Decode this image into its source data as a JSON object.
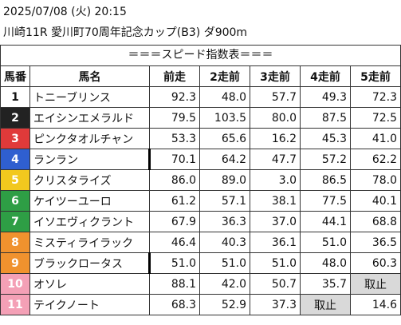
{
  "header": {
    "date": "2025/07/08 (火) 20:15",
    "race": "川崎11R 愛川町70周年記念カップ(B3) ダ900m"
  },
  "table": {
    "caption": "＝＝＝スピード指数表＝＝＝",
    "columns": [
      "馬番",
      "馬名",
      "前走",
      "2走前",
      "3走前",
      "4走前",
      "5走前"
    ],
    "rows": [
      [
        "1",
        "トニーブリンス",
        "92.3",
        "48.0",
        "57.7",
        "49.3",
        "72.3"
      ],
      [
        "2",
        "エイシンエメラルド",
        "79.5",
        "103.5",
        "80.0",
        "87.5",
        "72.5"
      ],
      [
        "3",
        "ピンクタオルチャン",
        "53.3",
        "65.6",
        "16.2",
        "45.3",
        "41.0"
      ],
      [
        "4",
        "ランラン",
        "70.1",
        "64.2",
        "47.7",
        "57.2",
        "62.2"
      ],
      [
        "5",
        "クリスタライズ",
        "86.0",
        "89.0",
        "3.0",
        "86.5",
        "78.0"
      ],
      [
        "6",
        "ケイツーユーロ",
        "61.2",
        "57.1",
        "38.1",
        "77.5",
        "40.1"
      ],
      [
        "7",
        "イソエヴィクラント",
        "67.9",
        "36.3",
        "37.0",
        "44.1",
        "68.8"
      ],
      [
        "8",
        "ミスティライラック",
        "46.4",
        "40.3",
        "36.1",
        "51.0",
        "36.5"
      ],
      [
        "9",
        "ブラックロータス",
        "51.0",
        "51.0",
        "51.0",
        "48.0",
        "60.3"
      ],
      [
        "10",
        "オソレ",
        "88.1",
        "42.0",
        "50.7",
        "35.7",
        "取止"
      ],
      [
        "11",
        "テイクノート",
        "68.3",
        "52.9",
        "37.3",
        "取止",
        "14.6"
      ]
    ]
  }
}
